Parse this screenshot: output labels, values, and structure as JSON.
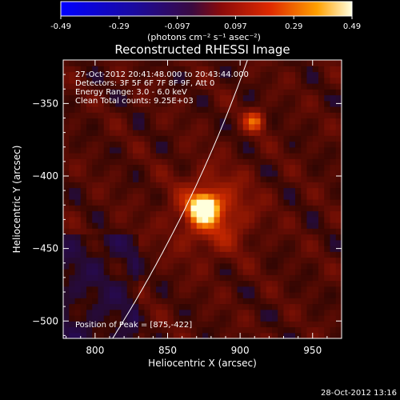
{
  "colorbar": {
    "ticks": [
      "-0.49",
      "-0.29",
      "-0.097",
      "0.097",
      "0.29",
      "0.49"
    ],
    "units": "(photons cm⁻² s⁻¹ asec⁻²)",
    "range": [
      -0.49,
      0.49
    ]
  },
  "plot": {
    "title": "Reconstructed RHESSI Image",
    "info_lines": [
      "27-Oct-2012 20:41:48.000 to 20:43:44.000",
      "Detectors: 3F 5F 6F 7F 8F 9F, Att 0",
      "Energy Range: 3.0 - 6.0 keV",
      "Clean    Total counts: 9.25E+03"
    ],
    "peak_label": "Position of Peak = [875,-422]",
    "footer_timestamp": "28-Oct-2012 13:16"
  },
  "chart_data": {
    "type": "heatmap",
    "title": "Reconstructed RHESSI Image",
    "xlabel": "Heliocentric X (arcsec)",
    "ylabel": "Heliocentric Y (arcsec)",
    "xlim": [
      778,
      970
    ],
    "ylim": [
      -512,
      -320
    ],
    "x_ticks": [
      800,
      850,
      900,
      950
    ],
    "x_tick_labels": [
      "800",
      "850",
      "900",
      "950"
    ],
    "y_ticks": [
      -350,
      -400,
      -450,
      -500
    ],
    "y_tick_labels": [
      "−350",
      "−400",
      "−450",
      "−500"
    ],
    "sources": [
      {
        "x": 875,
        "y": -422,
        "intensity": 0.49,
        "sigma": 6
      },
      {
        "x": 910,
        "y": -362,
        "intensity": 0.22,
        "sigma": 5
      },
      {
        "x": 880,
        "y": -425,
        "intensity": 0.18,
        "sigma": 18
      }
    ],
    "limb_arcsec": 960,
    "peak": [
      875,
      -422
    ]
  }
}
